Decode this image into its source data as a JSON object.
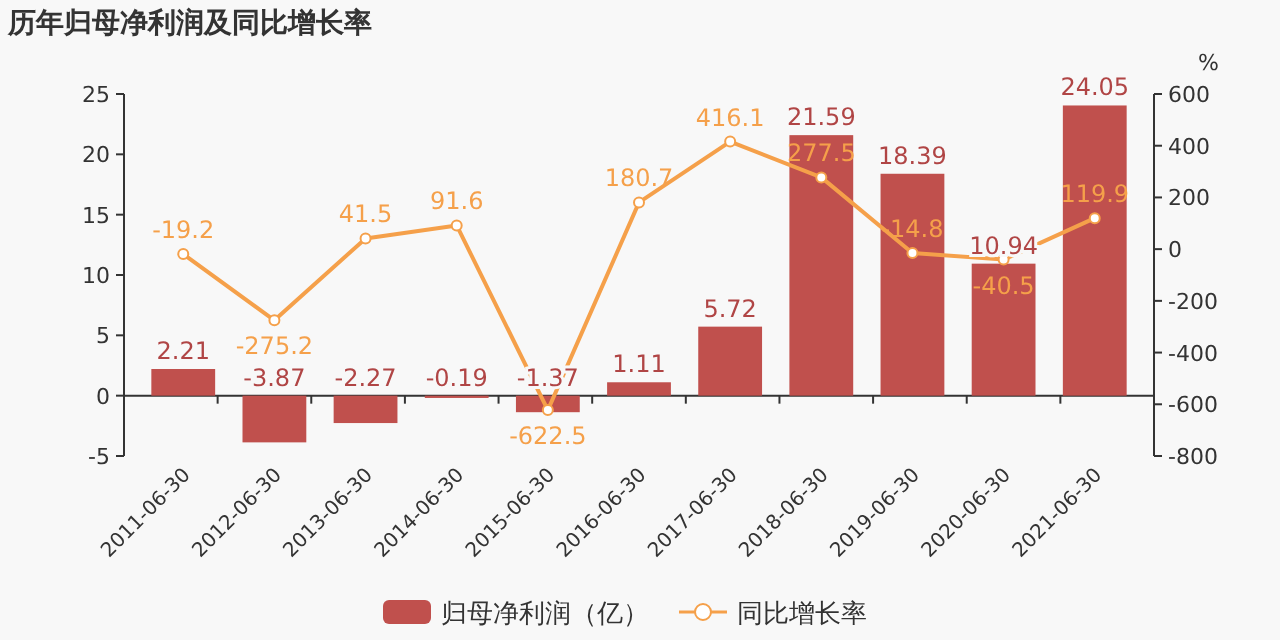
{
  "chart_data": {
    "type": "bar",
    "title": "历年归母净利润及同比增长率",
    "categories": [
      "2011-06-30",
      "2012-06-30",
      "2013-06-30",
      "2014-06-30",
      "2015-06-30",
      "2016-06-30",
      "2017-06-30",
      "2018-06-30",
      "2019-06-30",
      "2020-06-30",
      "2021-06-30"
    ],
    "series": [
      {
        "name": "归母净利润（亿）",
        "color": "#c0504d",
        "values": [
          2.21,
          -3.87,
          -2.27,
          -0.19,
          -1.37,
          1.11,
          5.72,
          21.59,
          18.39,
          10.94,
          24.05
        ]
      },
      {
        "name": "同比增长率",
        "type": "line",
        "axis": "y2",
        "color": "#f5a04a",
        "marker": "circle",
        "values": [
          -19.2,
          -275.2,
          41.5,
          91.6,
          -622.5,
          180.7,
          416.1,
          277.5,
          -14.8,
          -40.5,
          119.9
        ]
      }
    ],
    "ylim": [
      -5,
      25
    ],
    "yticks": [
      -5,
      0,
      5,
      10,
      15,
      20,
      25
    ],
    "y2lim": [
      -800,
      600
    ],
    "y2ticks": [
      -800,
      -600,
      -400,
      -200,
      0,
      200,
      400,
      600
    ],
    "y2label": "%",
    "data_labels": true,
    "legend": "bottom"
  }
}
